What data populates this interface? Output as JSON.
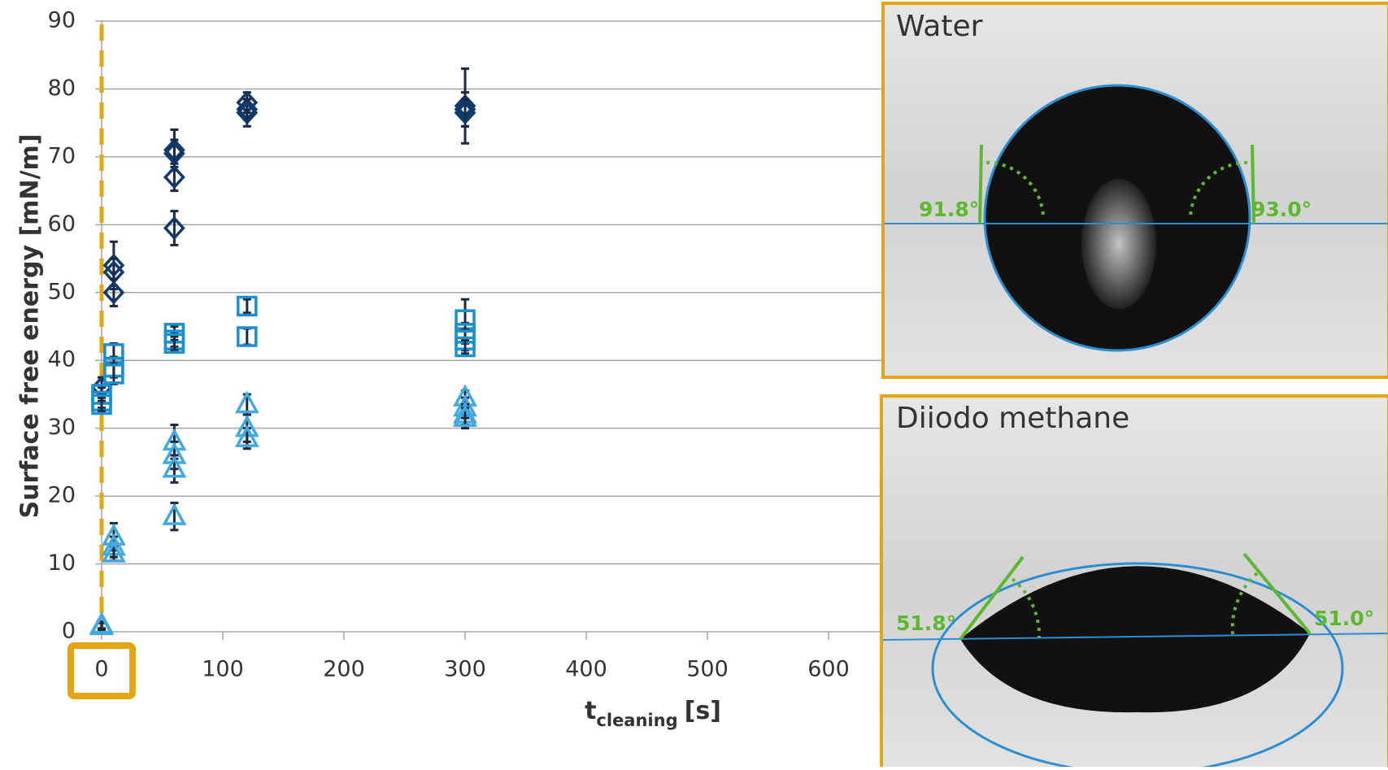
{
  "chart_data": {
    "type": "scatter",
    "y_label": "Surface free energy [mN/m]",
    "x_label": {
      "main": "t",
      "sub": "cleaning",
      "unit": "[s]"
    },
    "xlim": [
      0,
      700
    ],
    "xticks": [
      0,
      100,
      200,
      300,
      400,
      500,
      600
    ],
    "ylim": [
      0,
      90
    ],
    "yticks": [
      0,
      10,
      20,
      30,
      40,
      50,
      60,
      70,
      80,
      90
    ],
    "grid": true,
    "series": [
      {
        "marker": "diamond",
        "color": "#0e3a6b",
        "x": [
          0,
          10,
          10,
          10,
          60,
          60,
          60,
          60,
          120,
          120,
          120,
          300,
          300,
          300
        ],
        "values": [
          36,
          54,
          53,
          50,
          71,
          70.5,
          67,
          59.5,
          78,
          77,
          76.5,
          77.5,
          77,
          76.5
        ],
        "errors": [
          1.5,
          3.5,
          2,
          2,
          3,
          2,
          2,
          2.5,
          1.5,
          1.5,
          2,
          5.5,
          2.5,
          2
        ]
      },
      {
        "marker": "square",
        "color": "#1c8fcf",
        "x": [
          0,
          0,
          0,
          10,
          10,
          10,
          60,
          60,
          60,
          120,
          120,
          300,
          300,
          300,
          300
        ],
        "values": [
          35,
          34,
          33.5,
          41,
          39,
          38,
          44,
          43,
          42.5,
          48,
          43.5,
          46,
          44,
          43,
          42
        ],
        "errors": [
          1,
          1,
          1,
          1.5,
          1.5,
          1.5,
          1,
          1,
          1,
          1,
          1.2,
          3,
          1.5,
          1.5,
          1
        ]
      },
      {
        "marker": "triangle",
        "color": "#42a8e0",
        "x": [
          0,
          0,
          10,
          10,
          10,
          60,
          60,
          60,
          60,
          120,
          120,
          120,
          300,
          300,
          300,
          300
        ],
        "values": [
          1,
          0.8,
          14,
          12.5,
          11.5,
          28,
          26,
          24,
          17,
          33.5,
          30,
          28.5,
          34.5,
          33,
          32,
          31.5
        ],
        "errors": [
          0.5,
          0.5,
          2,
          1.5,
          1,
          2.5,
          2,
          2,
          2,
          1.5,
          2,
          1.5,
          1,
          1.5,
          1.5,
          1.5
        ]
      }
    ],
    "insets": [
      {
        "title": "Water",
        "angles": [
          "91.8°",
          "93.0°"
        ]
      },
      {
        "title": "Diiodo methane",
        "angles": [
          "51.8°",
          "51.0°"
        ]
      }
    ]
  }
}
